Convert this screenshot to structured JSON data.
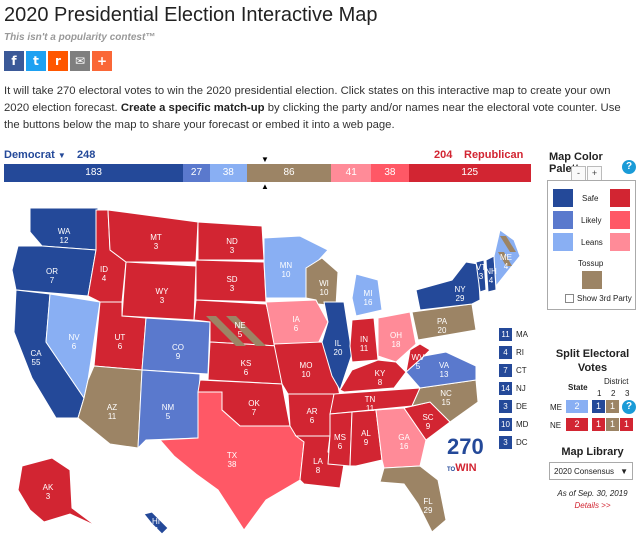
{
  "page": {
    "title": "2020 Presidential Election Interactive Map",
    "subtitle": "This isn't a popularity contest™"
  },
  "share": [
    {
      "icon": "facebook-icon",
      "glyph": "f",
      "color": "#3b5998"
    },
    {
      "icon": "twitter-icon",
      "glyph": "t",
      "color": "#1da1f2"
    },
    {
      "icon": "reddit-icon",
      "glyph": "r",
      "color": "#ff5700"
    },
    {
      "icon": "email-icon",
      "glyph": "✉",
      "color": "#7f7f7f"
    },
    {
      "icon": "more-share-icon",
      "glyph": "+",
      "color": "#fa6737"
    }
  ],
  "intro": {
    "part1": "It will take 270 electoral votes to win the 2020 presidential election. Click states on this interactive map to create your own 2020 election forecast. ",
    "bold": "Create a specific match-up",
    "part2": " by clicking the party and/or names near the electoral vote counter. Use the buttons below the map to share your forecast or embed it into a web page."
  },
  "counter": {
    "dem_label": "Democrat",
    "dem_total": "248",
    "rep_total": "204",
    "rep_label": "Republican",
    "segments": [
      {
        "label": "183",
        "value": 183,
        "color": "#244999"
      },
      {
        "label": "27",
        "value": 27,
        "color": "#5a79cd"
      },
      {
        "label": "38",
        "value": 38,
        "color": "#89aff3"
      },
      {
        "label": "86",
        "value": 86,
        "color": "#9c8465"
      },
      {
        "label": "41",
        "value": 41,
        "color": "#ff8b98"
      },
      {
        "label": "38",
        "value": 38,
        "color": "#ff5866"
      },
      {
        "label": "125",
        "value": 125,
        "color": "#d22532"
      }
    ]
  },
  "colors": {
    "safe_d": "#244999",
    "likely_d": "#5a79cd",
    "lean_d": "#89aff3",
    "tossup": "#9c8465",
    "lean_r": "#ff8b98",
    "likely_r": "#ff5866",
    "safe_r": "#d22532"
  },
  "map": {
    "states": [
      {
        "abbr": "WA",
        "ev": "12"
      },
      {
        "abbr": "OR",
        "ev": "7"
      },
      {
        "abbr": "CA",
        "ev": "55"
      },
      {
        "abbr": "NV",
        "ev": "6"
      },
      {
        "abbr": "ID",
        "ev": "4"
      },
      {
        "abbr": "MT",
        "ev": "3"
      },
      {
        "abbr": "WY",
        "ev": "3"
      },
      {
        "abbr": "UT",
        "ev": "6"
      },
      {
        "abbr": "AZ",
        "ev": "11"
      },
      {
        "abbr": "CO",
        "ev": "9"
      },
      {
        "abbr": "NM",
        "ev": "5"
      },
      {
        "abbr": "ND",
        "ev": "3"
      },
      {
        "abbr": "SD",
        "ev": "3"
      },
      {
        "abbr": "NE",
        "ev": "5"
      },
      {
        "abbr": "KS",
        "ev": "6"
      },
      {
        "abbr": "OK",
        "ev": "7"
      },
      {
        "abbr": "TX",
        "ev": "38"
      },
      {
        "abbr": "MN",
        "ev": "10"
      },
      {
        "abbr": "IA",
        "ev": "6"
      },
      {
        "abbr": "MO",
        "ev": "10"
      },
      {
        "abbr": "AR",
        "ev": "6"
      },
      {
        "abbr": "LA",
        "ev": "8"
      },
      {
        "abbr": "WI",
        "ev": "10"
      },
      {
        "abbr": "IL",
        "ev": "20"
      },
      {
        "abbr": "MI",
        "ev": "16"
      },
      {
        "abbr": "IN",
        "ev": "11"
      },
      {
        "abbr": "OH",
        "ev": "18"
      },
      {
        "abbr": "KY",
        "ev": "8"
      },
      {
        "abbr": "TN",
        "ev": "11"
      },
      {
        "abbr": "MS",
        "ev": "6"
      },
      {
        "abbr": "AL",
        "ev": "9"
      },
      {
        "abbr": "GA",
        "ev": "16"
      },
      {
        "abbr": "FL",
        "ev": "29"
      },
      {
        "abbr": "SC",
        "ev": "9"
      },
      {
        "abbr": "NC",
        "ev": "15"
      },
      {
        "abbr": "VA",
        "ev": "13"
      },
      {
        "abbr": "WV",
        "ev": "5"
      },
      {
        "abbr": "PA",
        "ev": "20"
      },
      {
        "abbr": "NY",
        "ev": "29"
      },
      {
        "abbr": "VT",
        "ev": "3"
      },
      {
        "abbr": "NH",
        "ev": "4"
      },
      {
        "abbr": "ME",
        "ev": "4"
      },
      {
        "abbr": "AK",
        "ev": "3"
      },
      {
        "abbr": "HI",
        "ev": "4"
      }
    ],
    "small_states": [
      {
        "ev": "11",
        "abbr": "MA"
      },
      {
        "ev": "4",
        "abbr": "RI"
      },
      {
        "ev": "7",
        "abbr": "CT"
      },
      {
        "ev": "14",
        "abbr": "NJ"
      },
      {
        "ev": "3",
        "abbr": "DE"
      },
      {
        "ev": "10",
        "abbr": "MD"
      },
      {
        "ev": "3",
        "abbr": "DC"
      }
    ],
    "logo_number": "270",
    "logo_to": "TO",
    "logo_win": "WIN"
  },
  "palette": {
    "title": "Map Color Palette",
    "minus": "-",
    "plus": "+",
    "safe": "Safe",
    "likely": "Likely",
    "leans": "Leans",
    "tossup": "Tossup",
    "show_3rd": "Show 3rd Party",
    "help": "?"
  },
  "split": {
    "title": "Split Electoral Votes",
    "state_header": "State",
    "district_header": "District",
    "d1": "1",
    "d2": "2",
    "d3": "3",
    "me_label": "ME",
    "ne_label": "NE",
    "me_state": "2",
    "me_d1": "1",
    "me_d2": "1",
    "ne_state": "2",
    "ne_d1": "1",
    "ne_d2": "1",
    "ne_d3": "1",
    "help": "?"
  },
  "library": {
    "title": "Map Library",
    "selected": "2020 Consensus",
    "as_of": "As of Sep. 30, 2019",
    "details": "Details >>"
  }
}
